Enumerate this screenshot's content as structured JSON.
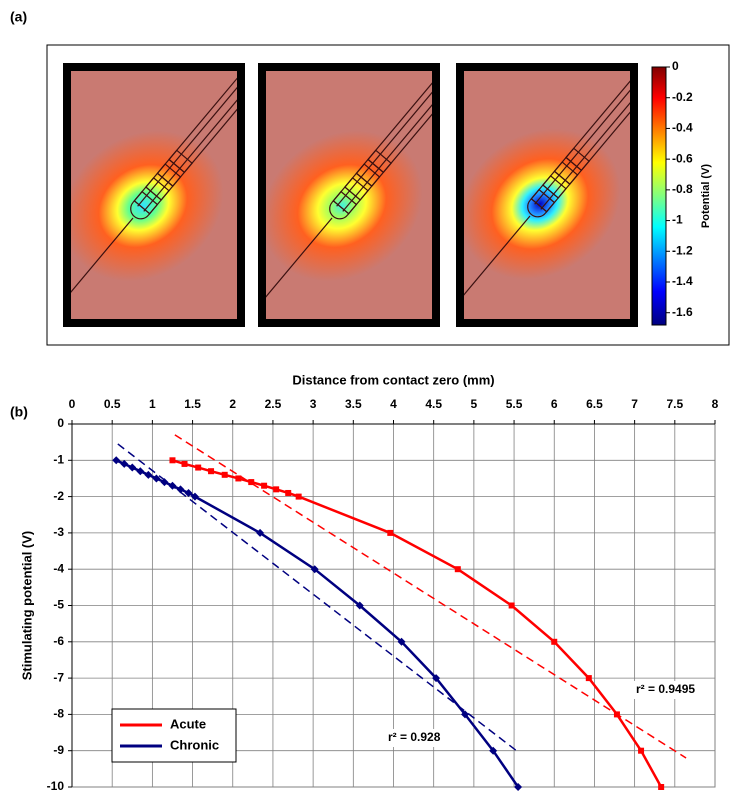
{
  "chart_data": [
    {
      "type": "image",
      "panel_label": "(a)",
      "colorbar": {
        "label": "Potential (V)",
        "lim": [
          -1.68,
          0
        ],
        "ticks": [
          0,
          -0.2,
          -0.4,
          -0.6,
          -0.8,
          -1,
          -1.2,
          -1.4,
          -1.6
        ]
      }
    },
    {
      "type": "line",
      "panel_label": "(b)",
      "x_label": "Distance from contact zero (mm)",
      "y_label": "Stimulating potential (V)",
      "xlim": [
        0,
        8
      ],
      "xticks": [
        0,
        0.5,
        1,
        1.5,
        2,
        2.5,
        3,
        3.5,
        4,
        4.5,
        5,
        5.5,
        6,
        6.5,
        7,
        7.5,
        8
      ],
      "ylim": [
        -10,
        0
      ],
      "yticks": [
        0,
        -1,
        -2,
        -3,
        -4,
        -5,
        -6,
        -7,
        -8,
        -9,
        -10
      ],
      "grid": true,
      "legend": "lower left",
      "series": [
        {
          "name": "Acute",
          "color": "#ff0000",
          "marker": "square",
          "x": [
            1.25,
            1.4,
            1.57,
            1.73,
            1.9,
            2.07,
            2.23,
            2.39,
            2.54,
            2.69,
            2.82,
            3.96,
            4.8,
            5.47,
            6.0,
            6.43,
            6.78,
            7.08,
            7.33
          ],
          "values": [
            -1,
            -1.1,
            -1.2,
            -1.3,
            -1.4,
            -1.5,
            -1.6,
            -1.7,
            -1.8,
            -1.9,
            -2,
            -3,
            -4,
            -5,
            -6,
            -7,
            -8,
            -9,
            -10
          ]
        },
        {
          "name": "Chronic",
          "color": "#000080",
          "marker": "diamond",
          "x": [
            0.55,
            0.65,
            0.75,
            0.85,
            0.95,
            1.05,
            1.15,
            1.25,
            1.35,
            1.45,
            1.53,
            2.34,
            3.02,
            3.58,
            4.1,
            4.53,
            4.89,
            5.24,
            5.55
          ],
          "values": [
            -1,
            -1.1,
            -1.2,
            -1.3,
            -1.4,
            -1.5,
            -1.6,
            -1.7,
            -1.8,
            -1.9,
            -2,
            -3,
            -4,
            -5,
            -6,
            -7,
            -8,
            -9,
            -10
          ]
        }
      ],
      "trendlines": [
        {
          "color": "#ff0000",
          "x": [
            1.28,
            7.64
          ],
          "y": [
            -0.3,
            -9.2
          ],
          "annotation": "r² = 0.9495"
        },
        {
          "color": "#000080",
          "x": [
            0.57,
            5.53
          ],
          "y": [
            -0.55,
            -9.0
          ],
          "annotation": "r² = 0.928"
        }
      ]
    }
  ]
}
